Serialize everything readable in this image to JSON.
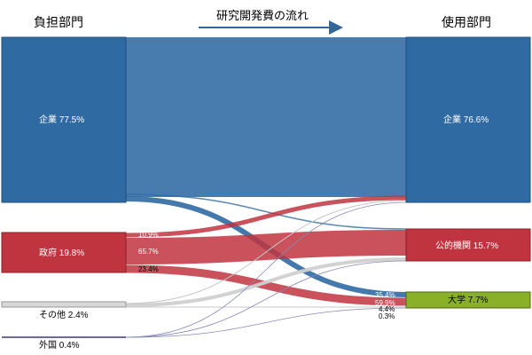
{
  "headers": {
    "left": "負担部門",
    "center": "研究開発費の流れ",
    "right": "使用部門"
  },
  "colors": {
    "enterprise": "#2f6aa3",
    "government": "#c0343f",
    "other": "#d0d0d0",
    "foreign": "#6a6aa0",
    "university": "#8ab02a",
    "arrow": "#336699"
  },
  "sources": [
    {
      "id": "enterprise",
      "label": "企業 77.5%"
    },
    {
      "id": "government",
      "label": "政府 19.8%"
    },
    {
      "id": "other",
      "label": "その他 2.4%"
    },
    {
      "id": "foreign",
      "label": "外国 0.4%"
    }
  ],
  "targets": [
    {
      "id": "enterprise",
      "label": "企業 76.6%"
    },
    {
      "id": "public",
      "label": "公的機関 15.7%"
    },
    {
      "id": "university",
      "label": "大学 7.7%"
    }
  ],
  "flow_labels": {
    "gov_to_enterprise": "10.9%",
    "gov_to_public": "65.7%",
    "gov_to_university": "23.4%",
    "univ_from_enterprise": "35.4%",
    "univ_from_government": "59.9%",
    "univ_from_other": "4.4%",
    "univ_from_foreign": "0.3%"
  }
}
